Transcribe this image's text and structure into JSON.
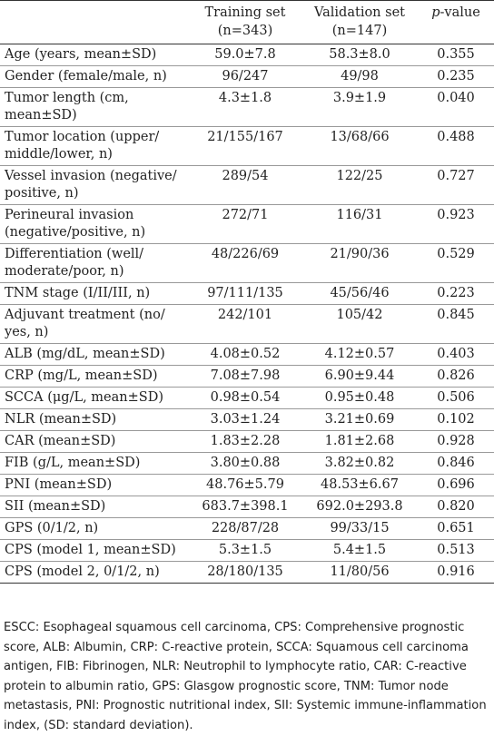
{
  "table": {
    "headers": {
      "col1": [
        "Training set",
        "(n=343)"
      ],
      "col2": [
        "Validation set",
        "(n=147)"
      ],
      "col3_italic": "p",
      "col3_rest": "-value"
    },
    "rows": [
      {
        "label": [
          "Age (years, mean±SD)"
        ],
        "training": "59.0±7.8",
        "validation": "58.3±8.0",
        "p": "0.355"
      },
      {
        "label": [
          "Gender (female/male, n)"
        ],
        "training": "96/247",
        "validation": "49/98",
        "p": "0.235"
      },
      {
        "label": [
          "Tumor length (cm,",
          "mean±SD)"
        ],
        "training": "4.3±1.8",
        "validation": "3.9±1.9",
        "p": "0.040"
      },
      {
        "label": [
          "Tumor location (upper/",
          "middle/lower, n)"
        ],
        "training": "21/155/167",
        "validation": "13/68/66",
        "p": "0.488"
      },
      {
        "label": [
          "Vessel invasion (negative/",
          "positive, n)"
        ],
        "training": "289/54",
        "validation": "122/25",
        "p": "0.727"
      },
      {
        "label": [
          "Perineural invasion",
          "(negative/positive, n)"
        ],
        "training": "272/71",
        "validation": "116/31",
        "p": "0.923"
      },
      {
        "label": [
          "Differentiation (well/",
          "moderate/poor, n)"
        ],
        "training": "48/226/69",
        "validation": "21/90/36",
        "p": "0.529"
      },
      {
        "label": [
          "TNM stage (I/II/III, n)"
        ],
        "training": "97/111/135",
        "validation": "45/56/46",
        "p": "0.223"
      },
      {
        "label": [
          "Adjuvant treatment (no/",
          "yes, n)"
        ],
        "training": "242/101",
        "validation": "105/42",
        "p": "0.845"
      },
      {
        "label": [
          "ALB (mg/dL, mean±SD)"
        ],
        "training": "4.08±0.52",
        "validation": "4.12±0.57",
        "p": "0.403"
      },
      {
        "label": [
          "CRP (mg/L, mean±SD)"
        ],
        "training": "7.08±7.98",
        "validation": "6.90±9.44",
        "p": "0.826"
      },
      {
        "label": [
          "SCCA (μg/L, mean±SD)"
        ],
        "training": "0.98±0.54",
        "validation": "0.95±0.48",
        "p": "0.506"
      },
      {
        "label": [
          "NLR (mean±SD)"
        ],
        "training": "3.03±1.24",
        "validation": "3.21±0.69",
        "p": "0.102"
      },
      {
        "label": [
          "CAR (mean±SD)"
        ],
        "training": "1.83±2.28",
        "validation": "1.81±2.68",
        "p": "0.928"
      },
      {
        "label": [
          "FIB (g/L, mean±SD)"
        ],
        "training": "3.80±0.88",
        "validation": "3.82±0.82",
        "p": "0.846"
      },
      {
        "label": [
          "PNI (mean±SD)"
        ],
        "training": "48.76±5.79",
        "validation": "48.53±6.67",
        "p": "0.696"
      },
      {
        "label": [
          "SII (mean±SD)"
        ],
        "training": "683.7±398.1",
        "validation": "692.0±293.8",
        "p": "0.820"
      },
      {
        "label": [
          "GPS (0/1/2, n)"
        ],
        "training": "228/87/28",
        "validation": "99/33/15",
        "p": "0.651"
      },
      {
        "label": [
          "CPS (model 1, mean±SD)"
        ],
        "training": "5.3±1.5",
        "validation": "5.4±1.5",
        "p": "0.513"
      },
      {
        "label": [
          "CPS (model 2, 0/1/2, n)"
        ],
        "training": "28/180/135",
        "validation": "11/80/56",
        "p": "0.916"
      }
    ]
  },
  "footnote": "ESCC: Esophageal squamous cell carcinoma, CPS: Comprehensive prognostic score, ALB: Albumin, CRP: C-reactive protein, SCCA: Squamous cell carcinoma antigen, FIB: Fibrinogen, NLR: Neutrophil to lymphocyte ratio, CAR: C-reactive protein to albumin ratio, GPS: Glasgow prognostic score, TNM: Tumor node metastasis, PNI: Prognostic nutritional index, SII: Systemic immune-inflammation index, (SD: standard deviation)."
}
